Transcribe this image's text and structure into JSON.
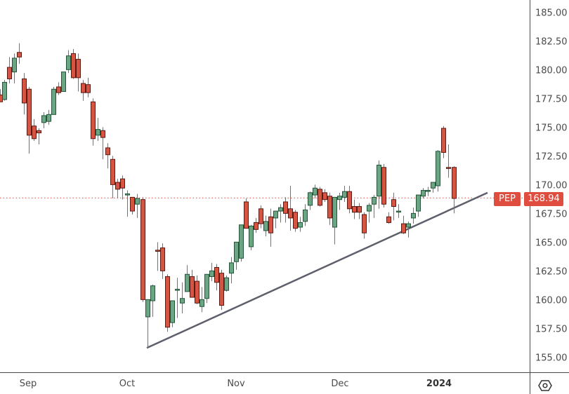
{
  "chart_data": {
    "type": "candlestick",
    "title": "",
    "symbol": "PEP",
    "last_price": 168.94,
    "xlabel": "",
    "ylabel": "",
    "ylim": [
      154.0,
      186.0
    ],
    "y_ticks": [
      "185.00",
      "182.50",
      "180.00",
      "177.50",
      "175.00",
      "172.50",
      "170.00",
      "167.50",
      "165.00",
      "162.50",
      "160.00",
      "157.50",
      "155.00"
    ],
    "x_ticks": [
      {
        "label": "Sep",
        "x": 40,
        "bold": false
      },
      {
        "label": "Oct",
        "x": 181,
        "bold": false
      },
      {
        "label": "Nov",
        "x": 336,
        "bold": false
      },
      {
        "label": "Dec",
        "x": 484,
        "bold": false
      },
      {
        "label": "2024",
        "x": 625,
        "bold": true
      }
    ],
    "colors": {
      "up": "#6ba583",
      "up_border": "#225437",
      "down": "#d75442",
      "down_border": "#5b1a13",
      "wick": "#737375",
      "trendline": "#5d606b",
      "price_line": "#df4d3f"
    },
    "trendline": {
      "from": {
        "x": 209,
        "price": 155.9
      },
      "to": {
        "x": 694,
        "price": 169.4
      }
    },
    "candles": [
      {
        "x": 0,
        "o": 177.9,
        "h": 178.4,
        "l": 177.3,
        "c": 177.3
      },
      {
        "x": 6,
        "o": 177.5,
        "h": 179.2,
        "l": 177.4,
        "c": 179.0
      },
      {
        "x": 13,
        "o": 180.3,
        "h": 181.2,
        "l": 178.9,
        "c": 179.3
      },
      {
        "x": 20,
        "o": 179.9,
        "h": 181.5,
        "l": 178.9,
        "c": 181.1
      },
      {
        "x": 27,
        "o": 181.6,
        "h": 182.4,
        "l": 180.6,
        "c": 181.2
      },
      {
        "x": 34,
        "o": 179.3,
        "h": 179.8,
        "l": 176.2,
        "c": 177.2
      },
      {
        "x": 41,
        "o": 178.4,
        "h": 178.6,
        "l": 172.8,
        "c": 174.4
      },
      {
        "x": 48,
        "o": 175.2,
        "h": 175.8,
        "l": 173.9,
        "c": 174.1
      },
      {
        "x": 55,
        "o": 174.8,
        "h": 175.0,
        "l": 173.6,
        "c": 174.6
      },
      {
        "x": 62,
        "o": 175.5,
        "h": 176.4,
        "l": 175.0,
        "c": 176.1
      },
      {
        "x": 69,
        "o": 175.6,
        "h": 176.6,
        "l": 175.3,
        "c": 176.2
      },
      {
        "x": 76,
        "o": 176.2,
        "h": 178.6,
        "l": 176.2,
        "c": 178.4
      },
      {
        "x": 83,
        "o": 178.6,
        "h": 179.0,
        "l": 177.9,
        "c": 178.1
      },
      {
        "x": 90,
        "o": 178.2,
        "h": 179.9,
        "l": 178.2,
        "c": 179.9
      },
      {
        "x": 97,
        "o": 180.1,
        "h": 181.8,
        "l": 179.8,
        "c": 181.3
      },
      {
        "x": 104,
        "o": 181.5,
        "h": 181.9,
        "l": 179.3,
        "c": 179.4
      },
      {
        "x": 111,
        "o": 181.0,
        "h": 181.5,
        "l": 178.2,
        "c": 179.4
      },
      {
        "x": 118,
        "o": 178.9,
        "h": 179.2,
        "l": 177.4,
        "c": 178.1
      },
      {
        "x": 125,
        "o": 178.8,
        "h": 179.4,
        "l": 177.7,
        "c": 178.1
      },
      {
        "x": 132,
        "o": 177.3,
        "h": 177.6,
        "l": 173.5,
        "c": 174.1
      },
      {
        "x": 139,
        "o": 174.4,
        "h": 175.9,
        "l": 173.9,
        "c": 174.9
      },
      {
        "x": 146,
        "o": 174.8,
        "h": 175.1,
        "l": 172.3,
        "c": 174.2
      },
      {
        "x": 153,
        "o": 173.3,
        "h": 173.7,
        "l": 171.5,
        "c": 172.7
      },
      {
        "x": 160,
        "o": 172.3,
        "h": 172.6,
        "l": 168.9,
        "c": 170.1
      },
      {
        "x": 167,
        "o": 170.3,
        "h": 170.6,
        "l": 168.9,
        "c": 169.7
      },
      {
        "x": 174,
        "o": 170.6,
        "h": 170.9,
        "l": 168.8,
        "c": 169.8
      },
      {
        "x": 181,
        "o": 169.2,
        "h": 169.6,
        "l": 167.3,
        "c": 169.3
      },
      {
        "x": 188,
        "o": 169.0,
        "h": 169.0,
        "l": 167.5,
        "c": 167.8
      },
      {
        "x": 195,
        "o": 168.4,
        "h": 169.3,
        "l": 167.2,
        "c": 168.9
      },
      {
        "x": 203,
        "o": 168.8,
        "h": 169.0,
        "l": 159.9,
        "c": 160.1
      },
      {
        "x": 210,
        "o": 158.6,
        "h": 159.3,
        "l": 155.9,
        "c": 160.1
      },
      {
        "x": 217,
        "o": 160.0,
        "h": 161.4,
        "l": 158.6,
        "c": 161.3
      },
      {
        "x": 224,
        "o": 164.4,
        "h": 165.1,
        "l": 162.6,
        "c": 164.3
      },
      {
        "x": 231,
        "o": 164.6,
        "h": 165.0,
        "l": 161.9,
        "c": 162.6
      },
      {
        "x": 238,
        "o": 162.1,
        "h": 162.3,
        "l": 157.3,
        "c": 157.7
      },
      {
        "x": 245,
        "o": 158.1,
        "h": 159.1,
        "l": 157.7,
        "c": 160.0
      },
      {
        "x": 252,
        "o": 161.0,
        "h": 162.0,
        "l": 158.5,
        "c": 161.0
      },
      {
        "x": 259,
        "o": 159.8,
        "h": 161.6,
        "l": 158.9,
        "c": 160.2
      },
      {
        "x": 266,
        "o": 160.8,
        "h": 163.1,
        "l": 160.8,
        "c": 162.3
      },
      {
        "x": 273,
        "o": 162.1,
        "h": 162.7,
        "l": 160.3,
        "c": 160.3
      },
      {
        "x": 280,
        "o": 161.7,
        "h": 162.2,
        "l": 159.7,
        "c": 159.8
      },
      {
        "x": 287,
        "o": 159.5,
        "h": 161.2,
        "l": 159.0,
        "c": 160.1
      },
      {
        "x": 294,
        "o": 160.2,
        "h": 162.1,
        "l": 159.8,
        "c": 162.3
      },
      {
        "x": 301,
        "o": 162.1,
        "h": 163.3,
        "l": 161.7,
        "c": 162.6
      },
      {
        "x": 308,
        "o": 162.9,
        "h": 163.2,
        "l": 160.9,
        "c": 161.6
      },
      {
        "x": 315,
        "o": 162.4,
        "h": 162.7,
        "l": 159.2,
        "c": 159.6
      },
      {
        "x": 322,
        "o": 160.9,
        "h": 162.2,
        "l": 160.8,
        "c": 162.0
      },
      {
        "x": 329,
        "o": 162.4,
        "h": 163.8,
        "l": 161.5,
        "c": 163.3
      },
      {
        "x": 336,
        "o": 163.4,
        "h": 165.1,
        "l": 162.7,
        "c": 165.1
      },
      {
        "x": 343,
        "o": 163.7,
        "h": 166.6,
        "l": 163.4,
        "c": 166.6
      },
      {
        "x": 350,
        "o": 168.6,
        "h": 168.9,
        "l": 166.3,
        "c": 166.3
      },
      {
        "x": 357,
        "o": 164.7,
        "h": 166.6,
        "l": 164.4,
        "c": 166.5
      },
      {
        "x": 364,
        "o": 166.8,
        "h": 167.2,
        "l": 165.9,
        "c": 166.2
      },
      {
        "x": 371,
        "o": 168.0,
        "h": 168.3,
        "l": 166.3,
        "c": 166.7
      },
      {
        "x": 378,
        "o": 166.1,
        "h": 167.4,
        "l": 165.6,
        "c": 166.9
      },
      {
        "x": 385,
        "o": 167.3,
        "h": 168.0,
        "l": 164.7,
        "c": 165.9
      },
      {
        "x": 392,
        "o": 167.2,
        "h": 167.8,
        "l": 166.3,
        "c": 167.8
      },
      {
        "x": 399,
        "o": 167.8,
        "h": 168.4,
        "l": 166.8,
        "c": 168.1
      },
      {
        "x": 406,
        "o": 168.6,
        "h": 169.0,
        "l": 166.8,
        "c": 167.6
      },
      {
        "x": 413,
        "o": 168.0,
        "h": 170.0,
        "l": 166.1,
        "c": 167.2
      },
      {
        "x": 420,
        "o": 167.7,
        "h": 167.9,
        "l": 166.0,
        "c": 166.3
      },
      {
        "x": 427,
        "o": 166.4,
        "h": 167.3,
        "l": 166.0,
        "c": 166.8
      },
      {
        "x": 434,
        "o": 166.9,
        "h": 168.4,
        "l": 166.5,
        "c": 167.9
      },
      {
        "x": 441,
        "o": 168.3,
        "h": 169.5,
        "l": 167.9,
        "c": 169.4
      },
      {
        "x": 448,
        "o": 169.2,
        "h": 170.1,
        "l": 168.9,
        "c": 169.8
      },
      {
        "x": 455,
        "o": 169.7,
        "h": 169.9,
        "l": 168.2,
        "c": 168.3
      },
      {
        "x": 462,
        "o": 169.4,
        "h": 169.7,
        "l": 168.6,
        "c": 168.8
      },
      {
        "x": 469,
        "o": 169.1,
        "h": 169.4,
        "l": 166.6,
        "c": 167.2
      },
      {
        "x": 476,
        "o": 166.4,
        "h": 169.0,
        "l": 164.9,
        "c": 169.0
      },
      {
        "x": 483,
        "o": 168.8,
        "h": 169.4,
        "l": 167.9,
        "c": 169.1
      },
      {
        "x": 490,
        "o": 169.0,
        "h": 170.0,
        "l": 168.6,
        "c": 169.5
      },
      {
        "x": 497,
        "o": 169.5,
        "h": 170.0,
        "l": 167.6,
        "c": 168.0
      },
      {
        "x": 504,
        "o": 168.2,
        "h": 168.8,
        "l": 167.1,
        "c": 167.7
      },
      {
        "x": 511,
        "o": 168.2,
        "h": 168.5,
        "l": 167.1,
        "c": 167.7
      },
      {
        "x": 518,
        "o": 167.5,
        "h": 167.7,
        "l": 165.4,
        "c": 165.9
      },
      {
        "x": 525,
        "o": 167.8,
        "h": 168.5,
        "l": 166.8,
        "c": 168.3
      },
      {
        "x": 532,
        "o": 168.4,
        "h": 169.2,
        "l": 167.2,
        "c": 169.0
      },
      {
        "x": 539,
        "o": 169.1,
        "h": 172.2,
        "l": 168.0,
        "c": 171.8
      },
      {
        "x": 546,
        "o": 171.6,
        "h": 171.9,
        "l": 168.1,
        "c": 168.4
      },
      {
        "x": 553,
        "o": 167.3,
        "h": 167.7,
        "l": 166.7,
        "c": 166.8
      },
      {
        "x": 560,
        "o": 168.8,
        "h": 169.4,
        "l": 167.0,
        "c": 168.2
      },
      {
        "x": 567,
        "o": 167.8,
        "h": 168.4,
        "l": 167.2,
        "c": 167.8
      },
      {
        "x": 574,
        "o": 166.7,
        "h": 167.4,
        "l": 165.8,
        "c": 165.9
      },
      {
        "x": 581,
        "o": 166.4,
        "h": 166.9,
        "l": 165.5,
        "c": 166.7
      },
      {
        "x": 588,
        "o": 167.2,
        "h": 168.1,
        "l": 166.7,
        "c": 167.6
      },
      {
        "x": 595,
        "o": 167.8,
        "h": 169.0,
        "l": 167.3,
        "c": 169.2
      },
      {
        "x": 602,
        "o": 169.1,
        "h": 169.8,
        "l": 168.9,
        "c": 169.6
      },
      {
        "x": 609,
        "o": 169.6,
        "h": 169.9,
        "l": 169.1,
        "c": 169.6
      },
      {
        "x": 616,
        "o": 169.8,
        "h": 170.3,
        "l": 169.4,
        "c": 170.3
      },
      {
        "x": 623,
        "o": 170.0,
        "h": 173.1,
        "l": 169.5,
        "c": 173.0
      },
      {
        "x": 631,
        "o": 175.0,
        "h": 175.2,
        "l": 172.4,
        "c": 172.9
      },
      {
        "x": 638,
        "o": 171.6,
        "h": 173.6,
        "l": 170.7,
        "c": 171.5
      },
      {
        "x": 646,
        "o": 171.6,
        "h": 171.7,
        "l": 167.6,
        "c": 168.9
      }
    ]
  },
  "price_tag": {
    "symbol": "PEP",
    "price": "168.94"
  },
  "settings_icon": "settings-hexagon-icon"
}
